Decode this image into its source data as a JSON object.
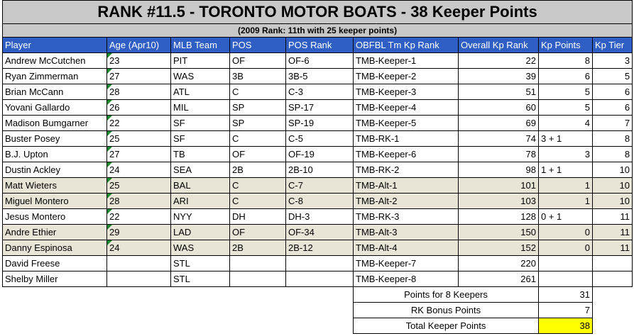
{
  "header": {
    "title": "RANK #11.5 - TORONTO MOTOR BOATS - 38 Keeper Points",
    "subtitle": "(2009 Rank: 11th with 25 keeper points)"
  },
  "table": {
    "columns": [
      "Player",
      "Age (Apr10)",
      "MLB Team",
      "POS",
      "POS Rank",
      "OBFBL Tm Kp Rank",
      "Overall Kp Rank",
      "Kp Points",
      "Kp Tier"
    ],
    "rows": [
      [
        "Andrew McCutchen",
        23,
        "PIT",
        "OF",
        "OF-6",
        "TMB-Keeper-1",
        22,
        8,
        3
      ],
      [
        "Ryan Zimmerman",
        27,
        "WAS",
        "3B",
        "3B-5",
        "TMB-Keeper-2",
        39,
        6,
        5
      ],
      [
        "Brian McCann",
        28,
        "ATL",
        "C",
        "C-3",
        "TMB-Keeper-3",
        51,
        5,
        6
      ],
      [
        "Yovani Gallardo",
        26,
        "MIL",
        "SP",
        "SP-17",
        "TMB-Keeper-4",
        60,
        5,
        6
      ],
      [
        "Madison Bumgarner",
        22,
        "SF",
        "SP",
        "SP-19",
        "TMB-Keeper-5",
        69,
        4,
        7
      ],
      [
        "Buster Posey",
        25,
        "SF",
        "C",
        "C-5",
        "TMB-RK-1",
        74,
        "3 + 1",
        8
      ],
      [
        "B.J. Upton",
        27,
        "TB",
        "OF",
        "OF-19",
        "TMB-Keeper-6",
        78,
        3,
        8
      ],
      [
        "Dustin Ackley",
        24,
        "SEA",
        "2B",
        "2B-10",
        "TMB-RK-2",
        98,
        "1 + 1",
        10
      ],
      [
        "Matt Wieters",
        25,
        "BAL",
        "C",
        "C-7",
        "TMB-Alt-1",
        101,
        1,
        10
      ],
      [
        "Miguel Montero",
        28,
        "ARI",
        "C",
        "C-8",
        "TMB-Alt-2",
        103,
        1,
        10
      ],
      [
        "Jesus Montero",
        22,
        "NYY",
        "DH",
        "DH-3",
        "TMB-RK-3",
        128,
        "0 + 1",
        11
      ],
      [
        "Andre Ethier",
        29,
        "LAD",
        "OF",
        "OF-34",
        "TMB-Alt-3",
        150,
        0,
        11
      ],
      [
        "Danny Espinosa",
        24,
        "WAS",
        "2B",
        "2B-12",
        "TMB-Alt-4",
        152,
        0,
        11
      ],
      [
        "David Freese",
        null,
        "STL",
        null,
        null,
        "TMB-Keeper-7",
        220,
        null,
        null
      ],
      [
        "Shelby Miller",
        null,
        "STL",
        null,
        null,
        "TMB-Keeper-8",
        261,
        null,
        null
      ]
    ],
    "alt_rows": [
      8,
      9,
      11,
      12
    ]
  },
  "summary": [
    {
      "label": "Points for 8 Keepers",
      "value": 31
    },
    {
      "label": "RK Bonus Points",
      "value": 7
    },
    {
      "label": "Total Keeper Points",
      "value": 38,
      "highlight": "#ffff00"
    }
  ]
}
